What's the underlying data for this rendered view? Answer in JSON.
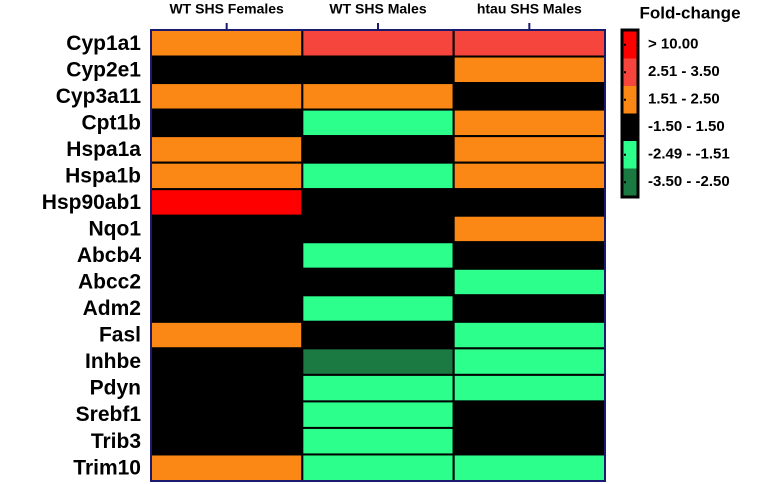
{
  "chart_data": {
    "type": "heatmap",
    "columns": [
      "WT SHS Females",
      "WT SHS Males",
      "htau SHS Males"
    ],
    "rows": [
      "Cyp1a1",
      "Cyp2e1",
      "Cyp3a11",
      "Cpt1b",
      "Hspa1a",
      "Hspa1b",
      "Hsp90ab1",
      "Nqo1",
      "Abcb4",
      "Abcc2",
      "Adm2",
      "Fasl",
      "Inhbe",
      "Pdyn",
      "Srebf1",
      "Trib3",
      "Trim10"
    ],
    "legend_title": "Fold-change",
    "legend": [
      {
        "label": "> 10.00",
        "color": "#ff0000"
      },
      {
        "label": "2.51 - 3.50",
        "color": "#f5453d"
      },
      {
        "label": "1.51 - 2.50",
        "color": "#fb8714"
      },
      {
        "label": "-1.50 - 1.50",
        "color": "#000000"
      },
      {
        "label": "-2.49 - -1.51",
        "color": "#2cff8c"
      },
      {
        "label": "-3.50 - -2.50",
        "color": "#1b7a42"
      }
    ],
    "values": [
      [
        2,
        1,
        1
      ],
      [
        3,
        3,
        2
      ],
      [
        2,
        2,
        3
      ],
      [
        3,
        4,
        2
      ],
      [
        2,
        3,
        2
      ],
      [
        2,
        4,
        2
      ],
      [
        0,
        3,
        3
      ],
      [
        3,
        3,
        2
      ],
      [
        3,
        4,
        3
      ],
      [
        3,
        3,
        4
      ],
      [
        3,
        4,
        3
      ],
      [
        2,
        3,
        4
      ],
      [
        3,
        5,
        4
      ],
      [
        3,
        4,
        4
      ],
      [
        3,
        4,
        3
      ],
      [
        3,
        4,
        3
      ],
      [
        2,
        4,
        4
      ]
    ]
  }
}
